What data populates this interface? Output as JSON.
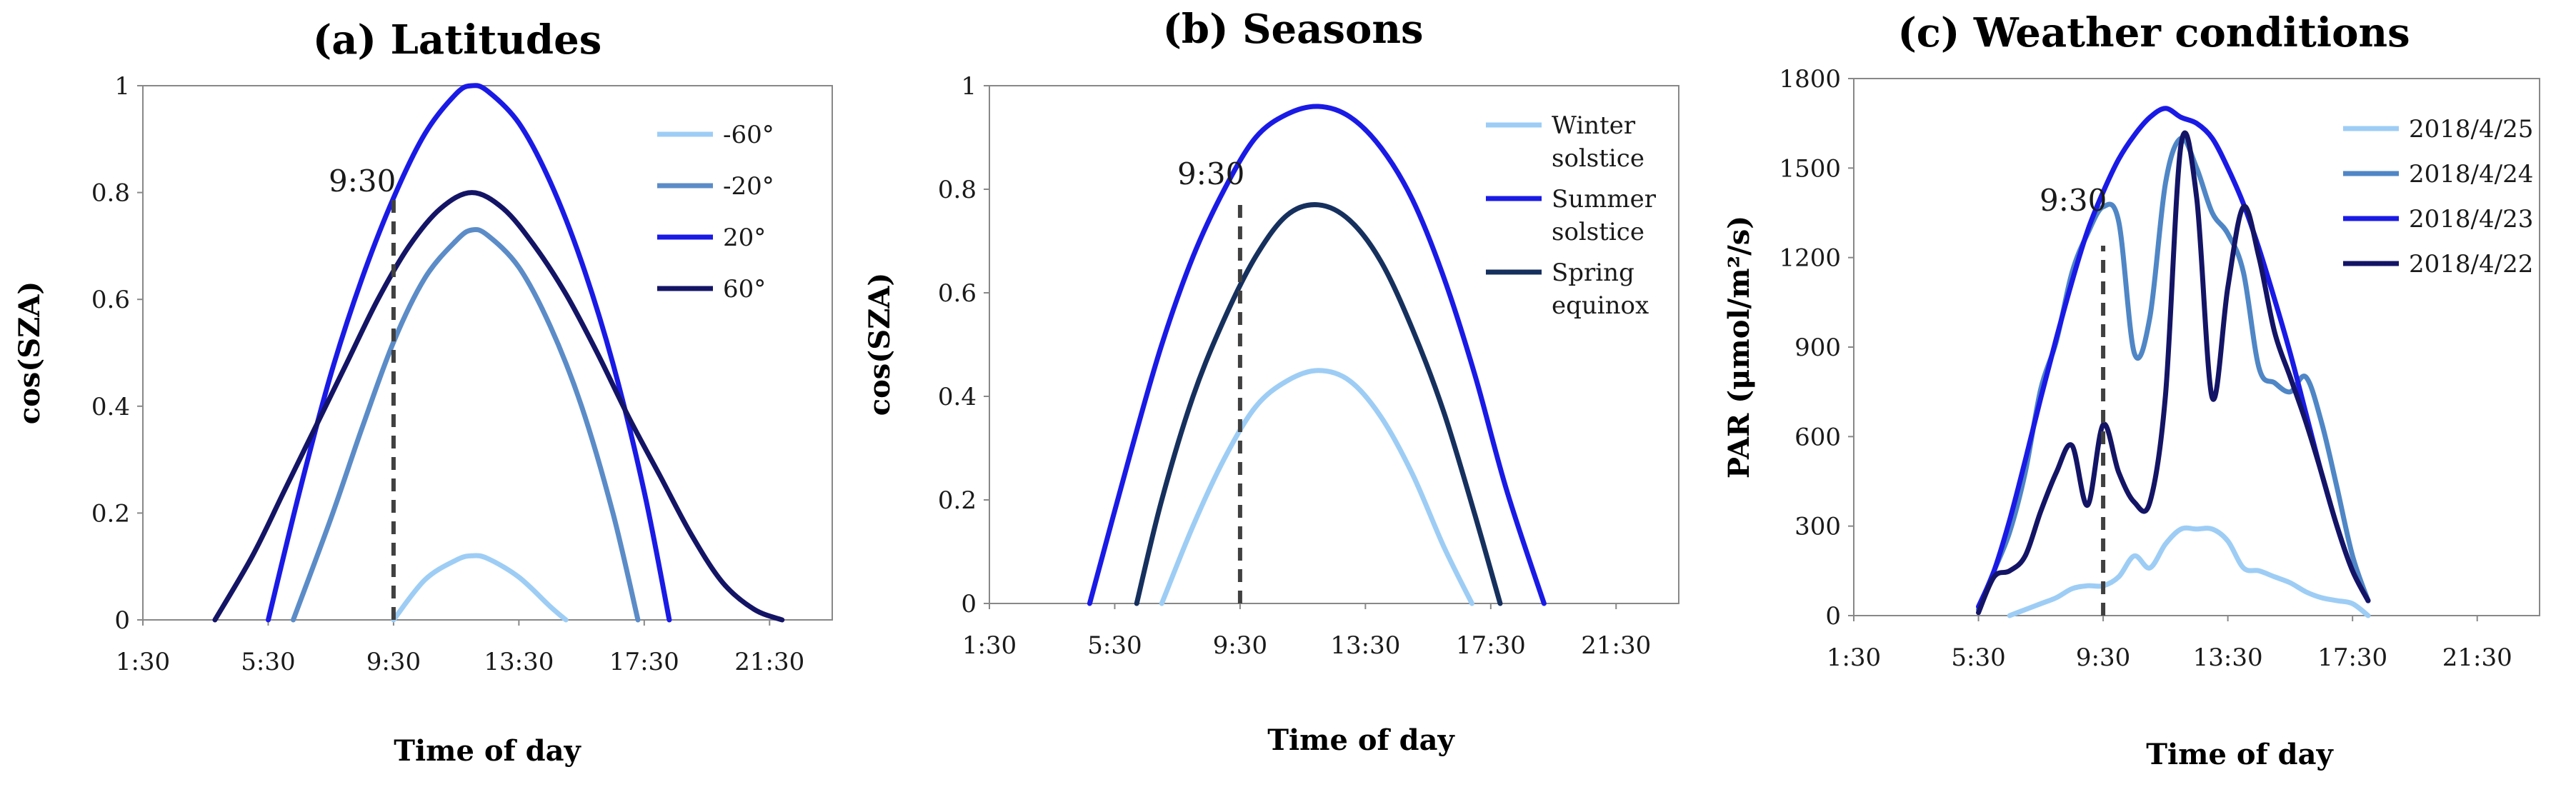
{
  "chart_data": [
    {
      "type": "line",
      "title": "(a) Latitudes",
      "xlabel": "Time of day",
      "ylabel": "cos(SZA)",
      "xlim": [
        1.5,
        23.5
      ],
      "ylim": [
        0,
        1
      ],
      "x_ticks": [
        1.5,
        5.5,
        9.5,
        13.5,
        17.5,
        21.5
      ],
      "x_tick_labels": [
        "1:30",
        "5:30",
        "9:30",
        "13:30",
        "17:30",
        "21:30"
      ],
      "y_ticks": [
        0,
        0.2,
        0.4,
        0.6,
        0.8,
        1
      ],
      "y_tick_labels": [
        "0",
        "0.2",
        "0.4",
        "0.6",
        "0.8",
        "1"
      ],
      "annotation": {
        "label": "9:30",
        "x": 9.5
      },
      "series": [
        {
          "name": "-60°",
          "color": "#9dcdf5",
          "x": [
            9.5,
            10.5,
            11.5,
            12.0,
            12.5,
            13.5,
            14.5,
            15.0
          ],
          "y": [
            0,
            0.075,
            0.112,
            0.12,
            0.115,
            0.08,
            0.025,
            0
          ]
        },
        {
          "name": "-20°",
          "color": "#5b8cc8",
          "x": [
            6.3,
            7.5,
            8.5,
            9.5,
            10.5,
            11.5,
            12.0,
            12.5,
            13.5,
            14.5,
            15.5,
            16.5,
            17.3
          ],
          "y": [
            0,
            0.19,
            0.36,
            0.52,
            0.64,
            0.71,
            0.73,
            0.72,
            0.66,
            0.55,
            0.4,
            0.2,
            0
          ]
        },
        {
          "name": "20°",
          "color": "#1a1ae6",
          "x": [
            5.5,
            6.5,
            7.5,
            8.5,
            9.5,
            10.5,
            11.5,
            12.0,
            12.5,
            13.5,
            14.5,
            15.5,
            16.5,
            17.5,
            18.3
          ],
          "y": [
            0,
            0.24,
            0.46,
            0.64,
            0.79,
            0.91,
            0.985,
            1.0,
            0.99,
            0.93,
            0.82,
            0.67,
            0.48,
            0.24,
            0
          ]
        },
        {
          "name": "60°",
          "color": "#141466",
          "x": [
            3.8,
            5.0,
            6.0,
            7.0,
            8.0,
            9.0,
            10.0,
            11.0,
            12.0,
            13.0,
            14.0,
            15.0,
            16.0,
            17.0,
            18.0,
            19.0,
            20.0,
            21.0,
            21.9
          ],
          "y": [
            0,
            0.12,
            0.24,
            0.36,
            0.48,
            0.6,
            0.7,
            0.77,
            0.8,
            0.77,
            0.7,
            0.61,
            0.5,
            0.38,
            0.27,
            0.16,
            0.07,
            0.02,
            0
          ]
        }
      ]
    },
    {
      "type": "line",
      "title": "(b) Seasons",
      "xlabel": "Time of day",
      "ylabel": "cos(SZA)",
      "xlim": [
        1.5,
        23.5
      ],
      "ylim": [
        0,
        1
      ],
      "x_ticks": [
        1.5,
        5.5,
        9.5,
        13.5,
        17.5,
        21.5
      ],
      "x_tick_labels": [
        "1:30",
        "5:30",
        "9:30",
        "13:30",
        "17:30",
        "21:30"
      ],
      "y_ticks": [
        0,
        0.2,
        0.4,
        0.6,
        0.8,
        1
      ],
      "y_tick_labels": [
        "0",
        "0.2",
        "0.4",
        "0.6",
        "0.8",
        "1"
      ],
      "annotation": {
        "label": "9:30",
        "x": 9.5
      },
      "series": [
        {
          "name_lines": [
            "Winter",
            "solstice"
          ],
          "color": "#9dcdf5",
          "x": [
            7.0,
            8.0,
            9.0,
            10.0,
            11.0,
            12.0,
            13.0,
            14.0,
            15.0,
            16.0,
            16.9
          ],
          "y": [
            0,
            0.15,
            0.28,
            0.38,
            0.43,
            0.45,
            0.43,
            0.36,
            0.25,
            0.11,
            0
          ]
        },
        {
          "name_lines": [
            "Summer",
            "solstice"
          ],
          "color": "#1a1ae6",
          "x": [
            4.7,
            6.0,
            7.0,
            8.0,
            9.0,
            10.0,
            11.0,
            12.0,
            13.0,
            14.0,
            15.0,
            16.0,
            17.0,
            18.0,
            19.2
          ],
          "y": [
            0,
            0.29,
            0.5,
            0.67,
            0.8,
            0.9,
            0.945,
            0.96,
            0.94,
            0.88,
            0.78,
            0.63,
            0.44,
            0.22,
            0
          ]
        },
        {
          "name_lines": [
            "Spring",
            "equinox"
          ],
          "color": "#16305e",
          "x": [
            6.2,
            7.0,
            8.0,
            9.0,
            10.0,
            11.0,
            12.0,
            13.0,
            14.0,
            15.0,
            16.0,
            17.0,
            17.8
          ],
          "y": [
            0,
            0.2,
            0.4,
            0.55,
            0.67,
            0.75,
            0.77,
            0.74,
            0.66,
            0.53,
            0.37,
            0.17,
            0
          ]
        }
      ]
    },
    {
      "type": "line",
      "title": "(c) Weather conditions",
      "xlabel": "Time of day",
      "ylabel": "PAR (μmol/m²/s)",
      "xlim": [
        1.5,
        23.5
      ],
      "ylim": [
        0,
        1800
      ],
      "x_ticks": [
        1.5,
        5.5,
        9.5,
        13.5,
        17.5,
        21.5
      ],
      "x_tick_labels": [
        "1:30",
        "5:30",
        "9:30",
        "13:30",
        "17:30",
        "21:30"
      ],
      "y_ticks": [
        0,
        300,
        600,
        900,
        1200,
        1500,
        1800
      ],
      "y_tick_labels": [
        "0",
        "300",
        "600",
        "900",
        "1200",
        "1500",
        "1800"
      ],
      "annotation": {
        "label": "9:30",
        "x": 9.5
      },
      "series": [
        {
          "name": "2018/4/25",
          "color": "#9dcdf5",
          "x": [
            6.5,
            7.0,
            7.5,
            8.0,
            8.5,
            9.0,
            9.5,
            10.0,
            10.5,
            11.0,
            11.5,
            12.0,
            12.5,
            13.0,
            13.5,
            14.0,
            14.5,
            15.0,
            15.5,
            16.0,
            16.5,
            17.0,
            17.5,
            18.0
          ],
          "y": [
            0,
            20,
            40,
            60,
            90,
            100,
            100,
            130,
            200,
            160,
            240,
            290,
            290,
            290,
            250,
            160,
            150,
            130,
            110,
            80,
            60,
            50,
            40,
            0
          ]
        },
        {
          "name": "2018/4/24",
          "color": "#4f86c6",
          "x": [
            5.5,
            6.0,
            6.5,
            7.0,
            7.5,
            8.0,
            8.5,
            9.0,
            9.5,
            10.0,
            10.5,
            11.0,
            11.5,
            12.0,
            12.5,
            13.0,
            13.5,
            14.0,
            14.5,
            15.0,
            15.5,
            16.0,
            16.5,
            17.0,
            17.5,
            18.0
          ],
          "y": [
            20,
            150,
            280,
            480,
            760,
            920,
            1150,
            1280,
            1370,
            1320,
            880,
            1000,
            1450,
            1600,
            1500,
            1350,
            1280,
            1150,
            830,
            780,
            750,
            800,
            650,
            430,
            200,
            50
          ]
        },
        {
          "name": "2018/4/23",
          "color": "#1a1ae6",
          "x": [
            5.5,
            6.0,
            6.5,
            7.0,
            7.5,
            8.0,
            8.5,
            9.0,
            9.5,
            10.0,
            10.5,
            11.0,
            11.5,
            12.0,
            12.5,
            13.0,
            13.5,
            14.0,
            14.5,
            15.0,
            15.5,
            16.0,
            16.5,
            17.0,
            17.5,
            18.0
          ],
          "y": [
            30,
            150,
            320,
            520,
            730,
            930,
            1120,
            1290,
            1420,
            1530,
            1610,
            1670,
            1700,
            1670,
            1650,
            1600,
            1500,
            1380,
            1230,
            1060,
            880,
            680,
            480,
            300,
            150,
            50
          ]
        },
        {
          "name": "2018/4/22",
          "color": "#141466",
          "x": [
            5.5,
            6.0,
            6.5,
            7.0,
            7.5,
            8.0,
            8.5,
            9.0,
            9.5,
            10.0,
            10.5,
            11.0,
            11.5,
            12.0,
            12.5,
            13.0,
            13.5,
            14.0,
            14.5,
            15.0,
            15.5,
            16.0,
            16.5,
            17.0,
            17.5,
            18.0
          ],
          "y": [
            10,
            130,
            150,
            200,
            350,
            480,
            570,
            370,
            640,
            480,
            380,
            380,
            740,
            1580,
            1400,
            730,
            1100,
            1370,
            1200,
            950,
            800,
            650,
            480,
            300,
            150,
            50
          ]
        }
      ]
    }
  ]
}
